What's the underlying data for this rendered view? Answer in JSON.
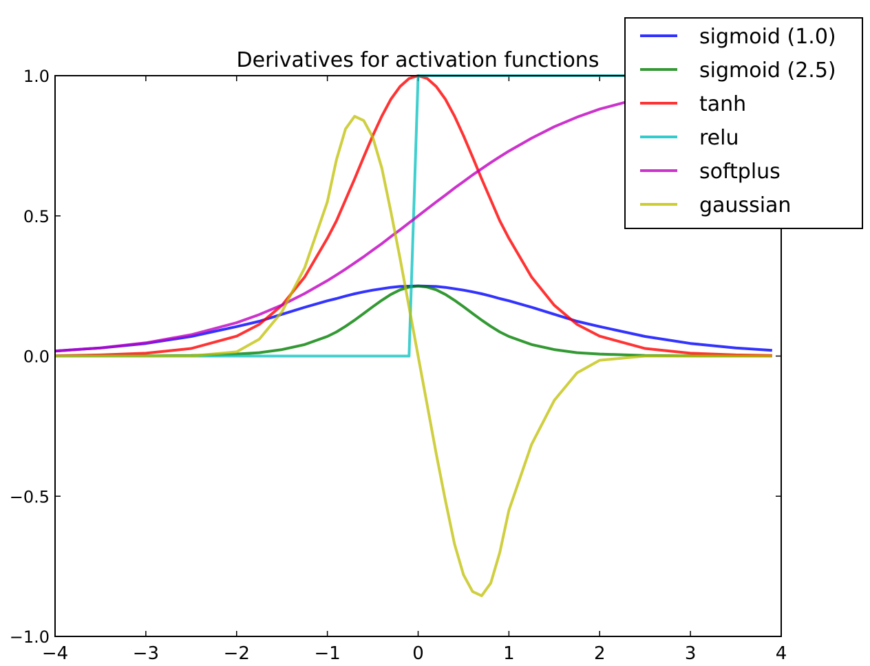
{
  "chart_data": {
    "type": "line",
    "title": "Derivatives for activation functions",
    "xlabel": "",
    "ylabel": "",
    "xlim": [
      -4,
      4
    ],
    "ylim": [
      -1.0,
      1.0
    ],
    "xticks": [
      -4,
      -3,
      -2,
      -1,
      0,
      1,
      2,
      3,
      4
    ],
    "xtick_labels": [
      "−4",
      "−3",
      "−2",
      "−1",
      "0",
      "1",
      "2",
      "3",
      "4"
    ],
    "yticks": [
      -1.0,
      -0.5,
      0.0,
      0.5,
      1.0
    ],
    "ytick_labels": [
      "−1.0",
      "−0.5",
      "0.0",
      "0.5",
      "1.0"
    ],
    "grid": false,
    "legend_position": "top-right",
    "x": [
      -4.0,
      -3.5,
      -3.0,
      -2.5,
      -2.0,
      -1.75,
      -1.5,
      -1.25,
      -1.0,
      -0.9,
      -0.8,
      -0.7,
      -0.6,
      -0.5,
      -0.4,
      -0.3,
      -0.2,
      -0.1,
      0.0,
      0.1,
      0.2,
      0.3,
      0.4,
      0.5,
      0.6,
      0.7,
      0.8,
      0.9,
      1.0,
      1.25,
      1.5,
      1.75,
      2.0,
      2.5,
      3.0,
      3.5,
      3.9
    ],
    "series": [
      {
        "name": "sigmoid (1.0)",
        "color": "#0000ff",
        "y": [
          0.018,
          0.029,
          0.045,
          0.07,
          0.105,
          0.124,
          0.149,
          0.174,
          0.197,
          0.205,
          0.214,
          0.222,
          0.229,
          0.235,
          0.24,
          0.245,
          0.248,
          0.249,
          0.25,
          0.249,
          0.248,
          0.245,
          0.24,
          0.235,
          0.229,
          0.222,
          0.214,
          0.205,
          0.197,
          0.174,
          0.149,
          0.124,
          0.105,
          0.07,
          0.045,
          0.029,
          0.02
        ]
      },
      {
        "name": "sigmoid (2.5)",
        "color": "#007f00",
        "y": [
          0.0001,
          0.0002,
          0.0006,
          0.002,
          0.007,
          0.012,
          0.023,
          0.041,
          0.07,
          0.086,
          0.106,
          0.128,
          0.152,
          0.176,
          0.199,
          0.22,
          0.236,
          0.246,
          0.25,
          0.246,
          0.236,
          0.22,
          0.199,
          0.176,
          0.152,
          0.128,
          0.106,
          0.086,
          0.07,
          0.041,
          0.023,
          0.012,
          0.007,
          0.002,
          0.0006,
          0.0002,
          0.0001
        ]
      },
      {
        "name": "tanh",
        "color": "#ff0000",
        "y": [
          0.001,
          0.004,
          0.01,
          0.027,
          0.071,
          0.113,
          0.181,
          0.282,
          0.42,
          0.482,
          0.557,
          0.632,
          0.71,
          0.786,
          0.856,
          0.916,
          0.961,
          0.99,
          1.0,
          0.99,
          0.961,
          0.916,
          0.856,
          0.786,
          0.71,
          0.632,
          0.557,
          0.482,
          0.42,
          0.282,
          0.181,
          0.113,
          0.071,
          0.027,
          0.01,
          0.004,
          0.002
        ]
      },
      {
        "name": "relu",
        "color": "#00bfbf",
        "y": [
          0,
          0,
          0,
          0,
          0,
          0,
          0,
          0,
          0,
          0,
          0,
          0,
          0,
          0,
          0,
          0,
          0,
          0,
          1,
          1,
          1,
          1,
          1,
          1,
          1,
          1,
          1,
          1,
          1,
          1,
          1,
          1,
          1,
          1,
          1,
          1,
          1
        ]
      },
      {
        "name": "softplus",
        "color": "#bf00bf",
        "y": [
          0.018,
          0.029,
          0.047,
          0.076,
          0.119,
          0.148,
          0.182,
          0.223,
          0.269,
          0.289,
          0.31,
          0.332,
          0.354,
          0.378,
          0.401,
          0.426,
          0.45,
          0.475,
          0.5,
          0.525,
          0.55,
          0.574,
          0.599,
          0.622,
          0.646,
          0.668,
          0.69,
          0.711,
          0.731,
          0.777,
          0.818,
          0.852,
          0.881,
          0.924,
          0.953,
          0.971,
          0.98
        ]
      },
      {
        "name": "gaussian",
        "color": "#bfbf00",
        "y": [
          0.0,
          0.0,
          0.0,
          0.0,
          0.015,
          0.06,
          0.158,
          0.315,
          0.55,
          0.7,
          0.81,
          0.855,
          0.84,
          0.78,
          0.67,
          0.515,
          0.35,
          0.175,
          0.0,
          -0.175,
          -0.35,
          -0.515,
          -0.67,
          -0.78,
          -0.84,
          -0.855,
          -0.81,
          -0.7,
          -0.55,
          -0.315,
          -0.158,
          -0.06,
          -0.015,
          0.0,
          0.0,
          0.0,
          0.0
        ]
      }
    ]
  }
}
